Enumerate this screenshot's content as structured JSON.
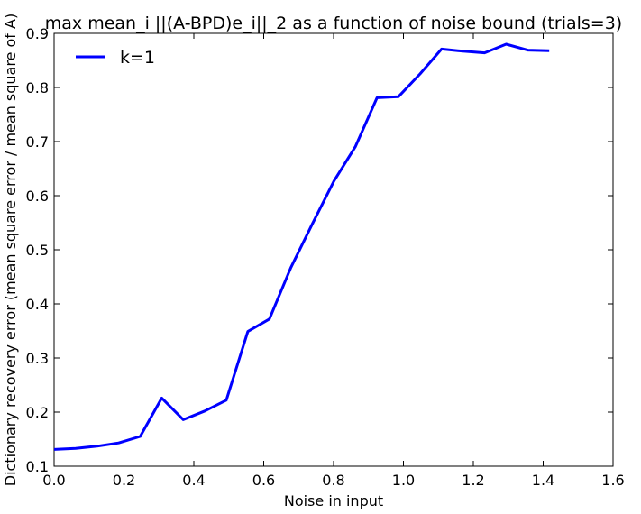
{
  "chart_data": {
    "type": "line",
    "title": "max mean_i ||(A-BPD)e_i||_2 as a function of noise bound (trials=3)",
    "xlabel": "Noise in input",
    "ylabel": "Dictionary recovery error (mean square error / mean square of A)",
    "xlim": [
      0.0,
      1.6
    ],
    "ylim": [
      0.1,
      0.9
    ],
    "xticks": [
      "0.0",
      "0.2",
      "0.4",
      "0.6",
      "0.8",
      "1.0",
      "1.2",
      "1.4",
      "1.6"
    ],
    "yticks": [
      "0.1",
      "0.2",
      "0.3",
      "0.4",
      "0.5",
      "0.6",
      "0.7",
      "0.8",
      "0.9"
    ],
    "grid": false,
    "legend_position": "top-left",
    "series": [
      {
        "name": "k=1",
        "color": "#0000ff",
        "x": [
          0.0,
          0.0616,
          0.1232,
          0.1849,
          0.2465,
          0.3081,
          0.3697,
          0.4313,
          0.4929,
          0.5546,
          0.6162,
          0.6778,
          0.7394,
          0.801,
          0.8626,
          0.9243,
          0.9859,
          1.0475,
          1.1091,
          1.1707,
          1.2323,
          1.294,
          1.3556,
          1.4172
        ],
        "values": [
          0.131,
          0.133,
          0.137,
          0.143,
          0.155,
          0.226,
          0.186,
          0.202,
          0.222,
          0.349,
          0.372,
          0.467,
          0.548,
          0.627,
          0.691,
          0.781,
          0.783,
          0.825,
          0.871,
          0.867,
          0.864,
          0.88,
          0.869,
          0.868
        ]
      }
    ]
  }
}
